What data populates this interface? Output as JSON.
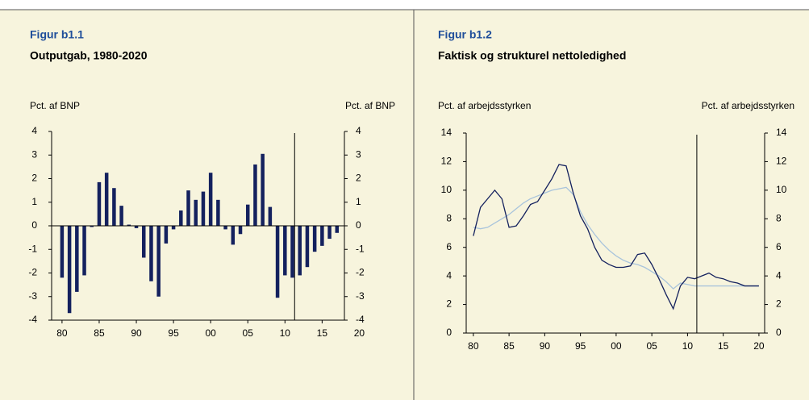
{
  "chart_data": [
    {
      "type": "bar",
      "label": "Figur b1.1",
      "title": "Outputgab, 1980-2020",
      "y_label": "Pct. af BNP",
      "y2_label": "Pct. af BNP",
      "x": [
        1980,
        1981,
        1982,
        1983,
        1984,
        1985,
        1986,
        1987,
        1988,
        1989,
        1990,
        1991,
        1992,
        1993,
        1994,
        1995,
        1996,
        1997,
        1998,
        1999,
        2000,
        2001,
        2002,
        2003,
        2004,
        2005,
        2006,
        2007,
        2008,
        2009,
        2010,
        2011,
        2012,
        2013,
        2014,
        2015,
        2016,
        2017
      ],
      "values": [
        -2.2,
        -3.7,
        -2.8,
        -2.1,
        -0.05,
        1.85,
        2.25,
        1.6,
        0.85,
        0.05,
        -0.1,
        -1.35,
        -2.35,
        -3.0,
        -0.75,
        -0.15,
        0.65,
        1.5,
        1.1,
        1.45,
        2.25,
        1.1,
        -0.15,
        -0.8,
        -0.35,
        0.9,
        2.6,
        3.05,
        0.8,
        -3.05,
        -2.1,
        -2.2,
        -2.1,
        -1.75,
        -1.1,
        -0.85,
        -0.55,
        -0.3
      ],
      "color": "#14215e",
      "xlim": [
        1978.6,
        2018.0
      ],
      "xticks": [
        {
          "value": 1980,
          "label": "80"
        },
        {
          "value": 1985,
          "label": "85"
        },
        {
          "value": 1990,
          "label": "90"
        },
        {
          "value": 1995,
          "label": "95"
        },
        {
          "value": 2000,
          "label": "00"
        },
        {
          "value": 2005,
          "label": "05"
        },
        {
          "value": 2010,
          "label": "10"
        },
        {
          "value": 2015,
          "label": "15"
        },
        {
          "value": 2020,
          "label": "20"
        }
      ],
      "ylim": [
        -4,
        4
      ],
      "yticks": [
        -4,
        -3,
        -2,
        -1,
        0,
        1,
        2,
        3,
        4
      ],
      "y2lim": [
        -4,
        4
      ],
      "y2ticks": [
        -4,
        -3,
        -2,
        -1,
        0,
        1,
        2,
        3,
        4
      ],
      "vline": 2011.3
    },
    {
      "type": "line",
      "label": "Figur b1.2",
      "title": "Faktisk og strukturel nettoledighed",
      "y_label": "Pct. af arbejdsstyrken",
      "y2_label": "Pct. af arbejdsstyrken",
      "x": [
        1980,
        1981,
        1982,
        1983,
        1984,
        1985,
        1986,
        1987,
        1988,
        1989,
        1990,
        1991,
        1992,
        1993,
        1994,
        1995,
        1996,
        1997,
        1998,
        1999,
        2000,
        2001,
        2002,
        2003,
        2004,
        2005,
        2006,
        2007,
        2008,
        2009,
        2010,
        2011,
        2012,
        2013,
        2014,
        2015,
        2016,
        2017,
        2018,
        2019,
        2020
      ],
      "series": [
        {
          "color": "#a9c4dc",
          "values": [
            7.4,
            7.3,
            7.4,
            7.7,
            8.0,
            8.3,
            8.7,
            9.1,
            9.4,
            9.6,
            9.8,
            10.0,
            10.1,
            10.2,
            9.7,
            8.5,
            7.6,
            6.9,
            6.3,
            5.8,
            5.4,
            5.1,
            4.9,
            4.8,
            4.6,
            4.3,
            4.0,
            3.6,
            3.1,
            3.5,
            3.4,
            3.3,
            3.3,
            3.3,
            3.3,
            3.3,
            3.3,
            3.3,
            3.3,
            3.3,
            3.3
          ]
        },
        {
          "color": "#14215e",
          "values": [
            6.8,
            8.8,
            9.4,
            10.0,
            9.4,
            7.4,
            7.5,
            8.2,
            9.0,
            9.2,
            10.0,
            10.8,
            11.8,
            11.7,
            9.8,
            8.2,
            7.3,
            6.0,
            5.1,
            4.8,
            4.6,
            4.6,
            4.7,
            5.5,
            5.6,
            4.8,
            3.8,
            2.7,
            1.7,
            3.3,
            3.9,
            3.8,
            4.0,
            4.2,
            3.9,
            3.8,
            3.6,
            3.5,
            3.3,
            3.3,
            3.3
          ]
        }
      ],
      "xlim": [
        1979.0,
        2020.8
      ],
      "xticks": [
        {
          "value": 1980,
          "label": "80"
        },
        {
          "value": 1985,
          "label": "85"
        },
        {
          "value": 1990,
          "label": "90"
        },
        {
          "value": 1995,
          "label": "95"
        },
        {
          "value": 2000,
          "label": "00"
        },
        {
          "value": 2005,
          "label": "05"
        },
        {
          "value": 2010,
          "label": "10"
        },
        {
          "value": 2015,
          "label": "15"
        },
        {
          "value": 2020,
          "label": "20"
        }
      ],
      "ylim": [
        0,
        14
      ],
      "yticks": [
        0,
        2,
        4,
        6,
        8,
        10,
        12,
        14
      ],
      "y2lim": [
        0,
        14
      ],
      "y2ticks": [
        0,
        2,
        4,
        6,
        8,
        10,
        12,
        14
      ],
      "vline": 2011.3
    }
  ]
}
